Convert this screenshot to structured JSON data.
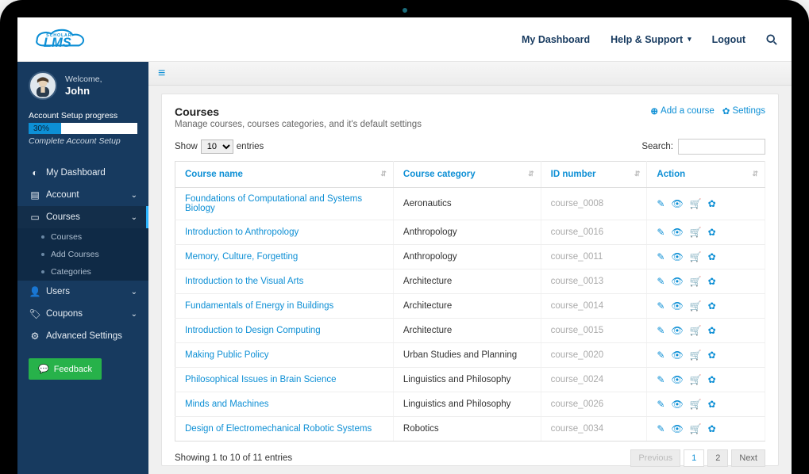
{
  "colors": {
    "sidebar_bg": "#173a5f",
    "accent_blue": "#0d8fd5",
    "active_strip": "#2bb4ff",
    "feedback_green": "#27b24a"
  },
  "topnav": {
    "dashboard": "My Dashboard",
    "help": "Help & Support",
    "logout": "Logout"
  },
  "logo": {
    "scholar": "SCHOLAR",
    "lms": "LMS"
  },
  "user": {
    "welcome": "Welcome,",
    "name": "John"
  },
  "setup": {
    "title": "Account Setup progress",
    "percent_label": "30%",
    "percent_value": 30,
    "complete_link": "Complete Account Setup"
  },
  "side": {
    "dashboard": "My Dashboard",
    "account": "Account",
    "courses": "Courses",
    "courses_sub": [
      "Courses",
      "Add Courses",
      "Categories"
    ],
    "users": "Users",
    "coupons": "Coupons",
    "advanced": "Advanced Settings",
    "feedback": "Feedback"
  },
  "page": {
    "title": "Courses",
    "subtitle": "Manage courses, courses categories, and it's default settings",
    "add_course": "Add a course",
    "settings": "Settings"
  },
  "table": {
    "show_prefix": "Show",
    "show_suffix": "entries",
    "page_size_selected": "10",
    "search_label": "Search:",
    "columns": {
      "name": "Course name",
      "category": "Course category",
      "id": "ID number",
      "action": "Action"
    },
    "rows": [
      {
        "name": "Foundations of Computational and Systems Biology",
        "category": "Aeronautics",
        "id": "course_0008",
        "dim": false
      },
      {
        "name": "Introduction to Anthropology",
        "category": "Anthropology",
        "id": "course_0016",
        "dim": false
      },
      {
        "name": "Memory, Culture, Forgetting",
        "category": "Anthropology",
        "id": "course_0011",
        "dim": false
      },
      {
        "name": "Introduction to the Visual Arts",
        "category": "Architecture",
        "id": "course_0013",
        "dim": false
      },
      {
        "name": "Fundamentals of Energy in Buildings",
        "category": "Architecture",
        "id": "course_0014",
        "dim": false
      },
      {
        "name": "Introduction to Design Computing",
        "category": "Architecture",
        "id": "course_0015",
        "dim": false
      },
      {
        "name": "Making Public Policy",
        "category": "Urban Studies and Planning",
        "id": "course_0020",
        "dim": true
      },
      {
        "name": "Philosophical Issues in Brain Science",
        "category": "Linguistics and Philosophy",
        "id": "course_0024",
        "dim": true
      },
      {
        "name": "Minds and Machines",
        "category": "Linguistics and Philosophy",
        "id": "course_0026",
        "dim": true
      },
      {
        "name": "Design of Electromechanical Robotic Systems",
        "category": "Robotics",
        "id": "course_0034",
        "dim": false
      }
    ],
    "footer_info": "Showing 1 to 10 of 11 entries",
    "pagination": {
      "prev": "Previous",
      "pages": [
        "1",
        "2"
      ],
      "next": "Next",
      "current": "1"
    }
  }
}
